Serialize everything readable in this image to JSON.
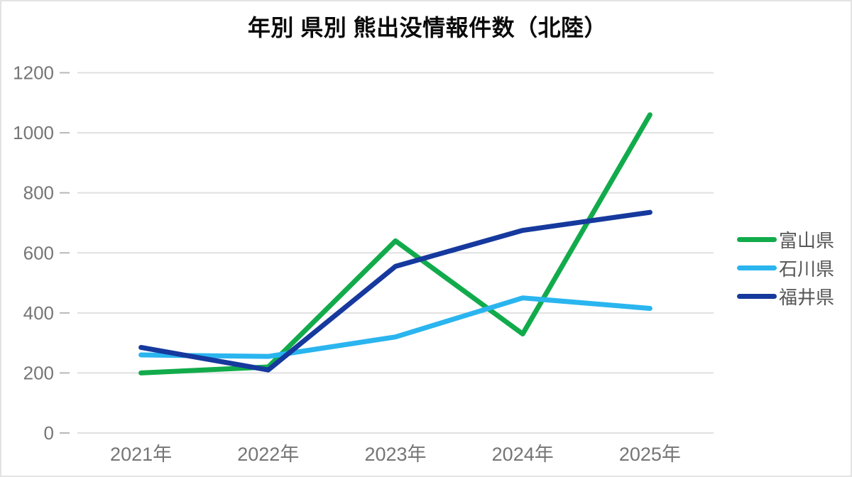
{
  "title": "年別 県別 熊出没情報件数（北陸）",
  "chart_data": {
    "type": "line",
    "title": "年別 県別 熊出没情報件数（北陸）",
    "categories": [
      "2021年",
      "2022年",
      "2023年",
      "2024年",
      "2025年"
    ],
    "series": [
      {
        "key": "toyama",
        "name": "富山県",
        "color": "#12ab4c",
        "values": [
          200,
          220,
          640,
          330,
          1060
        ]
      },
      {
        "key": "ishikawa",
        "name": "石川県",
        "color": "#2ab5ef",
        "values": [
          260,
          255,
          320,
          450,
          415
        ]
      },
      {
        "key": "fukui",
        "name": "福井県",
        "color": "#16399e",
        "values": [
          285,
          210,
          555,
          675,
          735
        ]
      }
    ],
    "ylim": [
      0,
      1200
    ],
    "yticks": [
      0,
      200,
      400,
      600,
      800,
      1000,
      1200
    ],
    "xlabel": "",
    "ylabel": "",
    "grid": "horizontal-only",
    "legend_position": "right",
    "legend_marker": "line-swatch",
    "line_width": 7
  },
  "colors": {
    "background": "#ffffff",
    "border": "#e3e3e3",
    "gridline": "#e0e0e0",
    "tick": "#b8b8b8",
    "axis_label": "#757575",
    "legend_label": "#565656",
    "title": "#0a0a0a"
  }
}
